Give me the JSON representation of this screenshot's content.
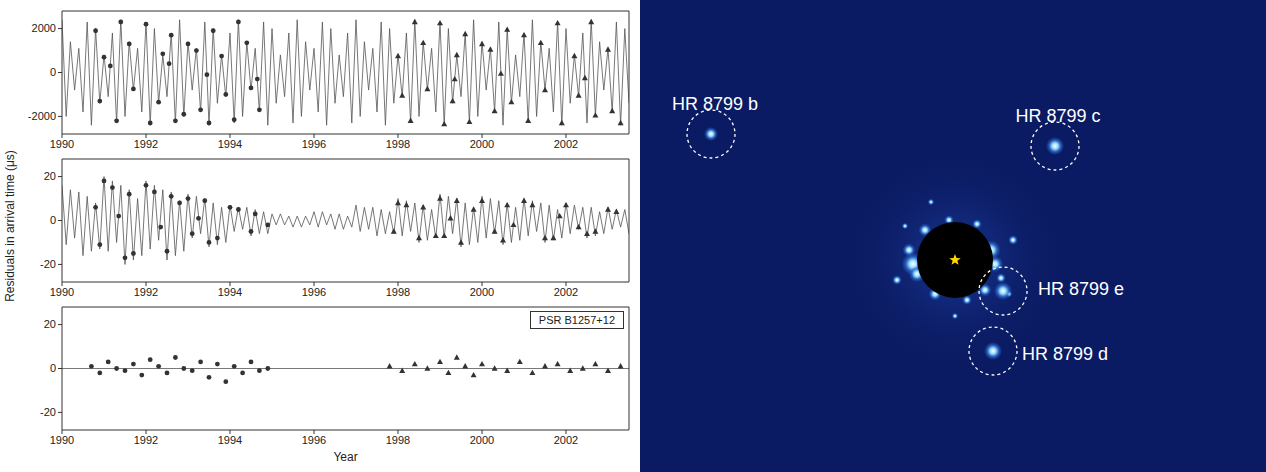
{
  "chart_data": [
    {
      "type": "line",
      "xlim": [
        1990,
        2003.5
      ],
      "xticks": [
        1990,
        1992,
        1994,
        1996,
        1998,
        2000,
        2002
      ],
      "ylim": [
        -2800,
        2800
      ],
      "yticks": [
        -2000,
        0,
        2000
      ],
      "series": [
        {
          "type": "line",
          "line_style": "solid",
          "color": "#555555",
          "x": [
            1990,
            1990.1,
            1990.2,
            1990.3,
            1990.4,
            1990.5,
            1990.6,
            1990.7,
            1990.8,
            1990.9,
            1991,
            1991.1,
            1991.2,
            1991.3,
            1991.4,
            1991.5,
            1991.6,
            1991.7,
            1991.8,
            1991.9,
            1992,
            1992.1,
            1992.2,
            1992.3,
            1992.4,
            1992.5,
            1992.6,
            1992.7,
            1992.8,
            1992.9,
            1993,
            1993.1,
            1993.2,
            1993.3,
            1993.4,
            1993.5,
            1993.6,
            1993.7,
            1993.8,
            1993.9,
            1994,
            1994.1,
            1994.2,
            1994.3,
            1994.4,
            1994.5,
            1994.6,
            1994.7,
            1994.8,
            1994.9,
            1995,
            1995.1,
            1995.2,
            1995.3,
            1995.4,
            1995.5,
            1995.6,
            1995.7,
            1995.8,
            1995.9,
            1996,
            1996.1,
            1996.2,
            1996.3,
            1996.4,
            1996.5,
            1996.6,
            1996.7,
            1996.8,
            1996.9,
            1997,
            1997.1,
            1997.2,
            1997.3,
            1997.4,
            1997.5,
            1997.6,
            1997.7,
            1997.8,
            1997.9,
            1998,
            1998.1,
            1998.2,
            1998.3,
            1998.4,
            1998.5,
            1998.6,
            1998.7,
            1998.8,
            1998.9,
            1999,
            1999.1,
            1999.2,
            1999.3,
            1999.4,
            1999.5,
            1999.6,
            1999.7,
            1999.8,
            1999.9,
            2000,
            2000.1,
            2000.2,
            2000.3,
            2000.4,
            2000.5,
            2000.6,
            2000.7,
            2000.8,
            2000.9,
            2001,
            2001.1,
            2001.2,
            2001.3,
            2001.4,
            2001.5,
            2001.6,
            2001.7,
            2001.8,
            2001.9,
            2002,
            2002.1,
            2002.2,
            2002.3,
            2002.4,
            2002.5,
            2002.6,
            2002.7,
            2002.8,
            2002.9,
            2003,
            2003.1,
            2003.2,
            2003.3,
            2003.4,
            2003.5
          ],
          "values": [
            2400,
            -2000,
            1400,
            -800,
            1100,
            -1800,
            2300,
            -2400,
            2000,
            -1400,
            800,
            -1100,
            1800,
            -2300,
            2400,
            -2000,
            1400,
            -800,
            1100,
            -1800,
            2300,
            -2400,
            2000,
            -1400,
            800,
            -1100,
            1800,
            -2300,
            2400,
            -2000,
            1400,
            -800,
            1100,
            -1800,
            2300,
            -2400,
            2000,
            -1400,
            800,
            -1100,
            1800,
            -2300,
            2400,
            -2000,
            1400,
            -800,
            1100,
            -1800,
            2300,
            -2400,
            2000,
            -1400,
            800,
            -1100,
            1800,
            -2300,
            2400,
            -2000,
            1400,
            -800,
            1100,
            -1800,
            2300,
            -2400,
            2000,
            -1400,
            800,
            -1100,
            1800,
            -2300,
            2400,
            -2000,
            1400,
            -800,
            1100,
            -1800,
            2300,
            -2400,
            2000,
            -1400,
            800,
            -1100,
            1800,
            -2300,
            2400,
            -2000,
            1400,
            -800,
            1100,
            -1800,
            2300,
            -2400,
            2000,
            -1400,
            800,
            -1100,
            1800,
            -2300,
            2400,
            -2000,
            1400,
            -800,
            1100,
            -1800,
            2300,
            -2400,
            2000,
            -1400,
            800,
            -1100,
            1800,
            -2300,
            2400,
            -2000,
            1400,
            -800,
            1100,
            -1800,
            2300,
            -2400,
            2000,
            -1400,
            800,
            -1100,
            1800,
            -2300,
            2400,
            -2000,
            1400,
            -800,
            1100,
            -1800,
            2300,
            -2400,
            2000,
            -1400
          ]
        },
        {
          "type": "scatter",
          "marker": "circle",
          "color": "#333333",
          "x": [
            1990.8,
            1990.9,
            1991,
            1991.15,
            1991.3,
            1991.4,
            1991.6,
            1991.7,
            1992,
            1992.1,
            1992.3,
            1992.4,
            1992.55,
            1992.6,
            1992.7,
            1992.9,
            1993,
            1993.2,
            1993.3,
            1993.45,
            1993.5,
            1993.6,
            1993.8,
            1993.9,
            1994.1,
            1994.2,
            1994.4,
            1994.5,
            1994.65,
            1994.7
          ],
          "values": [
            1900,
            -1300,
            700,
            300,
            -2200,
            2300,
            1300,
            -750,
            2200,
            -2300,
            -1350,
            850,
            400,
            1700,
            -2200,
            -1900,
            1300,
            1000,
            -1700,
            -100,
            -2300,
            1900,
            750,
            -1000,
            -2150,
            2300,
            1350,
            -700,
            -300,
            -1700
          ]
        },
        {
          "type": "scatter",
          "marker": "triangle",
          "color": "#333333",
          "x": [
            1998,
            1998.1,
            1998.3,
            1998.4,
            1998.6,
            1998.7,
            1999,
            1999.1,
            1999.3,
            1999.35,
            1999.4,
            1999.6,
            1999.7,
            2000,
            2000.2,
            2000.3,
            2000.45,
            2000.6,
            2000.7,
            2001,
            2001.1,
            2001.4,
            2001.5,
            2001.8,
            2001.9,
            2002.2,
            2002.3,
            2002.45,
            2002.6,
            2002.7,
            2003,
            2003.1,
            2003.3
          ],
          "values": [
            750,
            -1050,
            -2200,
            2300,
            1350,
            -750,
            2250,
            -2350,
            -1300,
            -300,
            800,
            1750,
            -2250,
            1300,
            1050,
            -1750,
            -50,
            1950,
            -1350,
            1700,
            -2200,
            1350,
            -800,
            2250,
            -2300,
            750,
            -1050,
            -250,
            2300,
            -1950,
            1050,
            -1750,
            -2300
          ]
        }
      ]
    },
    {
      "type": "line",
      "ylabel": "Residuals in arrival time (μs)",
      "xlim": [
        1990,
        2003.5
      ],
      "xticks": [
        1990,
        1992,
        1994,
        1996,
        1998,
        2000,
        2002
      ],
      "ylim": [
        -28,
        28
      ],
      "yticks": [
        -20,
        0,
        20
      ],
      "series": [
        {
          "type": "line",
          "line_style": "solid",
          "color": "#555555",
          "x": [
            1990,
            1990.1,
            1990.2,
            1990.3,
            1990.4,
            1990.5,
            1990.6,
            1990.7,
            1990.8,
            1990.9,
            1991,
            1991.1,
            1991.2,
            1991.3,
            1991.4,
            1991.5,
            1991.6,
            1991.7,
            1991.8,
            1991.9,
            1992,
            1992.1,
            1992.2,
            1992.3,
            1992.4,
            1992.5,
            1992.6,
            1992.7,
            1992.8,
            1992.9,
            1993,
            1993.1,
            1993.2,
            1993.3,
            1993.4,
            1993.5,
            1993.6,
            1993.7,
            1993.8,
            1993.9,
            1994,
            1994.1,
            1994.2,
            1994.3,
            1994.4,
            1994.5,
            1994.6,
            1994.7,
            1994.8,
            1994.9,
            1995,
            1995.1,
            1995.2,
            1995.3,
            1995.4,
            1995.5,
            1995.6,
            1995.7,
            1995.8,
            1995.9,
            1996,
            1996.1,
            1996.2,
            1996.3,
            1996.4,
            1996.5,
            1996.6,
            1996.7,
            1996.8,
            1996.9,
            1997,
            1997.1,
            1997.2,
            1997.3,
            1997.4,
            1997.5,
            1997.6,
            1997.7,
            1997.8,
            1997.9,
            1998,
            1998.1,
            1998.2,
            1998.3,
            1998.4,
            1998.5,
            1998.6,
            1998.7,
            1998.8,
            1998.9,
            1999,
            1999.1,
            1999.2,
            1999.3,
            1999.4,
            1999.5,
            1999.6,
            1999.7,
            1999.8,
            1999.9,
            2000,
            2000.1,
            2000.2,
            2000.3,
            2000.4,
            2000.5,
            2000.6,
            2000.7,
            2000.8,
            2000.9,
            2001,
            2001.1,
            2001.2,
            2001.3,
            2001.4,
            2001.5,
            2001.6,
            2001.7,
            2001.8,
            2001.9,
            2002,
            2002.1,
            2002.2,
            2002.3,
            2002.4,
            2002.5,
            2002.6,
            2002.7,
            2002.8,
            2002.9,
            2003,
            2003.1,
            2003.2,
            2003.3,
            2003.4,
            2003.5
          ],
          "values": [
            16,
            -11,
            14,
            -8,
            13,
            -16,
            11,
            -14,
            8,
            -13,
            20,
            -14,
            18,
            -10,
            16,
            -20,
            14,
            -18,
            10,
            -16,
            18,
            -13,
            16,
            -9,
            14,
            -18,
            13,
            -16,
            9,
            -14,
            12,
            -8,
            11,
            -6,
            10,
            -12,
            8,
            -11,
            6,
            -10,
            7,
            -5,
            6,
            -4,
            6,
            -7,
            5,
            -6,
            4,
            -6,
            3,
            -2,
            3,
            -2,
            2,
            -3,
            2,
            -3,
            2,
            -2,
            4,
            -3,
            4,
            -2,
            3,
            -4,
            3,
            -4,
            2,
            -3,
            7,
            -5,
            6,
            -4,
            6,
            -7,
            5,
            -6,
            4,
            -6,
            10,
            -7,
            9,
            -5,
            8,
            -10,
            7,
            -9,
            5,
            -8,
            12,
            -8,
            11,
            -6,
            10,
            -12,
            8,
            -11,
            6,
            -10,
            11,
            -8,
            10,
            -6,
            9,
            -11,
            8,
            -10,
            6,
            -9,
            10,
            -7,
            9,
            -5,
            8,
            -10,
            7,
            -9,
            5,
            -8,
            8,
            -6,
            7,
            -4,
            6,
            -8,
            6,
            -7,
            4,
            -6,
            6,
            -4,
            5,
            -3,
            5,
            -6
          ]
        },
        {
          "type": "scatter",
          "marker": "circle",
          "color": "#333333",
          "x": [
            1990.8,
            1990.9,
            1991,
            1991.2,
            1991.35,
            1991.5,
            1991.6,
            1991.7,
            1992,
            1992.2,
            1992.35,
            1992.5,
            1992.6,
            1992.8,
            1993,
            1993.1,
            1993.25,
            1993.4,
            1993.5,
            1993.7,
            1994,
            1994.2,
            1994.5,
            1994.6,
            1994.9
          ],
          "values": [
            6,
            -11,
            18,
            15,
            2,
            -17,
            12,
            -15,
            16,
            13,
            -3,
            -14,
            11,
            8,
            10,
            -6,
            1,
            9,
            -10,
            -8,
            6,
            5,
            -5,
            3,
            -2
          ]
        },
        {
          "type": "scatter",
          "marker": "triangle",
          "color": "#333333",
          "x": [
            1997.9,
            1998,
            1998.2,
            1998.5,
            1998.6,
            1998.9,
            1999,
            1999.1,
            1999.25,
            1999.4,
            1999.5,
            1999.8,
            2000,
            2000.3,
            2000.5,
            2000.6,
            2000.75,
            2001,
            2001.2,
            2001.5,
            2001.7,
            2001.85,
            2002,
            2002.3,
            2002.5,
            2002.7,
            2003,
            2003.2
          ],
          "values": [
            -5,
            8,
            7,
            -8,
            6,
            -7,
            10,
            -7,
            1,
            9,
            -10,
            5,
            9,
            -5,
            -9,
            7,
            -2,
            9,
            7,
            -8,
            -8,
            2,
            7,
            -3,
            -6,
            -5,
            5,
            4
          ]
        }
      ]
    },
    {
      "type": "line",
      "xlabel": "Year",
      "annotation": "PSR B1257+12",
      "xlim": [
        1990,
        2003.5
      ],
      "xticks": [
        1990,
        1992,
        1994,
        1996,
        1998,
        2000,
        2002
      ],
      "ylim": [
        -28,
        28
      ],
      "yticks": [
        -20,
        0,
        20
      ],
      "series": [
        {
          "type": "line",
          "line_style": "solid",
          "color": "#555555",
          "x": [
            1990,
            2003.5
          ],
          "values": [
            0,
            0
          ]
        },
        {
          "type": "scatter",
          "marker": "circle",
          "color": "#333333",
          "x": [
            1990.7,
            1990.9,
            1991.1,
            1991.3,
            1991.5,
            1991.7,
            1991.9,
            1992.1,
            1992.3,
            1992.5,
            1992.7,
            1992.9,
            1993.1,
            1993.3,
            1993.5,
            1993.7,
            1993.9,
            1994.1,
            1994.3,
            1994.5,
            1994.7,
            1994.9
          ],
          "values": [
            1,
            -2,
            3,
            0,
            -1,
            2,
            -3,
            4,
            1,
            -2,
            5,
            0,
            -1,
            3,
            -4,
            2,
            -6,
            1,
            -2,
            3,
            -1,
            0
          ]
        },
        {
          "type": "scatter",
          "marker": "triangle",
          "color": "#333333",
          "x": [
            1997.8,
            1998.1,
            1998.4,
            1998.7,
            1999,
            1999.2,
            1999.4,
            1999.6,
            1999.8,
            2000,
            2000.3,
            2000.6,
            2000.9,
            2001.2,
            2001.5,
            2001.8,
            2002.1,
            2002.4,
            2002.7,
            2003,
            2003.3
          ],
          "values": [
            1,
            -1,
            2,
            0,
            3,
            -2,
            5,
            1,
            -3,
            2,
            0,
            -1,
            3,
            -2,
            1,
            2,
            -1,
            0,
            2,
            -1,
            1
          ]
        }
      ]
    }
  ],
  "image": {
    "labels": [
      "HR 8799 b",
      "HR 8799 c",
      "HR 8799 e",
      "HR 8799 d"
    ]
  }
}
